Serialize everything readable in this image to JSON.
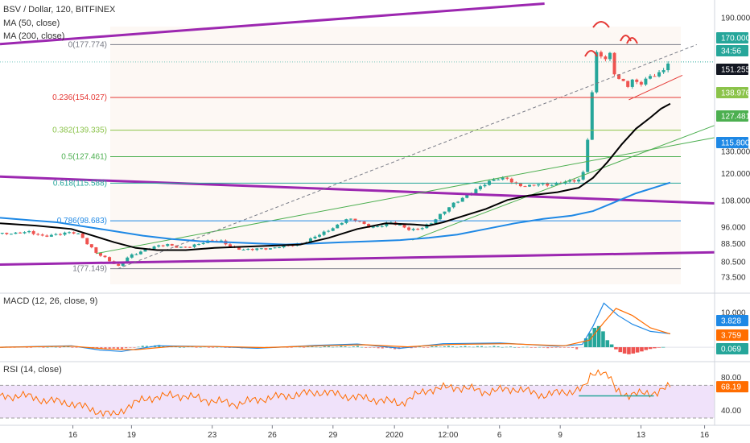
{
  "chart_data": {
    "type": "candlestick",
    "symbol_title": "BSV / Dollar, 120, BITFINEX",
    "indicators": [
      {
        "name": "MA (50, close)",
        "color": "#000000"
      },
      {
        "name": "MA (200, close)",
        "color": "#1e88e5"
      }
    ],
    "price_axis": {
      "range": [
        70.5,
        196
      ],
      "ticks": [
        {
          "label": "190.000",
          "value": 190
        },
        {
          "label": "130.000",
          "value": 130
        },
        {
          "label": "120.000",
          "value": 120
        },
        {
          "label": "108.000",
          "value": 108
        },
        {
          "label": "96.000",
          "value": 96
        },
        {
          "label": "88.500",
          "value": 88.5
        },
        {
          "label": "80.500",
          "value": 80.5
        },
        {
          "label": "73.500",
          "value": 73.5
        }
      ]
    },
    "price_badges": [
      {
        "label": "170.000",
        "value": 170.0,
        "color": "#26a69a"
      },
      {
        "label": "34:56",
        "value": 166.6,
        "color": "#26a69a"
      },
      {
        "label": "151.255",
        "value": 151.255,
        "color": "#131722"
      },
      {
        "label": "138.976",
        "value": 138.976,
        "color": "#8bc34a"
      },
      {
        "label": "127.481",
        "value": 127.481,
        "color": "#4caf50"
      },
      {
        "label": "115.800",
        "value": 115.8,
        "color": "#1e88e5"
      }
    ],
    "fib_levels": [
      {
        "ratio_label": "0",
        "price_label": "177.774",
        "value": 177.774,
        "color": "#787b86"
      },
      {
        "ratio_label": "0.236",
        "price_label": "154.027",
        "value": 154.027,
        "color": "#e53935"
      },
      {
        "ratio_label": "0.382",
        "price_label": "139.335",
        "value": 139.335,
        "color": "#8bc34a"
      },
      {
        "ratio_label": "0.5",
        "price_label": "127.461",
        "value": 127.461,
        "color": "#4caf50"
      },
      {
        "ratio_label": "0.618",
        "price_label": "115.588",
        "value": 115.588,
        "color": "#26a69a"
      },
      {
        "ratio_label": "0.786",
        "price_label": "98.683",
        "value": 98.683,
        "color": "#1e88e5"
      },
      {
        "ratio_label": "1",
        "price_label": "77.149",
        "value": 77.149,
        "color": "#787b86"
      }
    ],
    "x_axis": {
      "ticks": [
        {
          "label": "16",
          "t": 0.102
        },
        {
          "label": "19",
          "t": 0.184
        },
        {
          "label": "23",
          "t": 0.297
        },
        {
          "label": "26",
          "t": 0.381
        },
        {
          "label": "29",
          "t": 0.466
        },
        {
          "label": "2020",
          "t": 0.552
        },
        {
          "label": "12:00",
          "t": 0.627
        },
        {
          "label": "6",
          "t": 0.699
        },
        {
          "label": "9",
          "t": 0.784
        },
        {
          "label": "13",
          "t": 0.897
        },
        {
          "label": "16",
          "t": 0.986
        }
      ]
    },
    "price_path": [
      [
        0.0,
        93.0
      ],
      [
        0.02,
        92.5
      ],
      [
        0.04,
        93.5
      ],
      [
        0.06,
        92.0
      ],
      [
        0.08,
        93.0
      ],
      [
        0.1,
        93.5
      ],
      [
        0.112,
        92.0
      ],
      [
        0.122,
        88.0
      ],
      [
        0.135,
        84.0
      ],
      [
        0.148,
        82.0
      ],
      [
        0.158,
        80.0
      ],
      [
        0.166,
        78.5
      ],
      [
        0.172,
        80.5
      ],
      [
        0.18,
        83.0
      ],
      [
        0.192,
        84.0
      ],
      [
        0.205,
        85.5
      ],
      [
        0.22,
        87.0
      ],
      [
        0.235,
        88.0
      ],
      [
        0.25,
        87.0
      ],
      [
        0.265,
        87.5
      ],
      [
        0.28,
        88.5
      ],
      [
        0.295,
        89.5
      ],
      [
        0.31,
        89.0
      ],
      [
        0.325,
        86.5
      ],
      [
        0.34,
        86.0
      ],
      [
        0.36,
        86.5
      ],
      [
        0.38,
        86.0
      ],
      [
        0.395,
        87.0
      ],
      [
        0.41,
        87.5
      ],
      [
        0.425,
        88.5
      ],
      [
        0.44,
        92.0
      ],
      [
        0.455,
        94.0
      ],
      [
        0.47,
        96.0
      ],
      [
        0.485,
        99.0
      ],
      [
        0.5,
        98.5
      ],
      [
        0.515,
        96.0
      ],
      [
        0.53,
        96.5
      ],
      [
        0.545,
        98.5
      ],
      [
        0.56,
        96.5
      ],
      [
        0.575,
        94.0
      ],
      [
        0.59,
        95.0
      ],
      [
        0.605,
        98.0
      ],
      [
        0.62,
        103.0
      ],
      [
        0.635,
        107.0
      ],
      [
        0.65,
        109.5
      ],
      [
        0.665,
        112.0
      ],
      [
        0.68,
        115.0
      ],
      [
        0.695,
        117.5
      ],
      [
        0.71,
        118.0
      ],
      [
        0.725,
        115.0
      ],
      [
        0.74,
        114.5
      ],
      [
        0.755,
        115.0
      ],
      [
        0.77,
        114.0
      ],
      [
        0.785,
        115.5
      ],
      [
        0.8,
        117.0
      ],
      [
        0.81,
        117.5
      ],
      [
        0.818,
        122.0
      ],
      [
        0.822,
        135.0
      ],
      [
        0.826,
        150.0
      ],
      [
        0.83,
        160.0
      ],
      [
        0.836,
        178.0
      ],
      [
        0.842,
        172.0
      ],
      [
        0.848,
        170.0
      ],
      [
        0.852,
        176.0
      ],
      [
        0.858,
        166.0
      ],
      [
        0.864,
        160.0
      ],
      [
        0.87,
        163.0
      ],
      [
        0.876,
        158.0
      ],
      [
        0.882,
        160.0
      ],
      [
        0.888,
        163.0
      ],
      [
        0.895,
        160.0
      ],
      [
        0.902,
        162.0
      ],
      [
        0.91,
        165.0
      ],
      [
        0.918,
        164.0
      ],
      [
        0.925,
        166.0
      ],
      [
        0.932,
        168.0
      ],
      [
        0.938,
        170.0
      ]
    ],
    "ma50_path": [
      [
        0.0,
        97.5
      ],
      [
        0.05,
        96.5
      ],
      [
        0.1,
        95.0
      ],
      [
        0.13,
        92.0
      ],
      [
        0.16,
        89.0
      ],
      [
        0.19,
        86.5
      ],
      [
        0.22,
        85.5
      ],
      [
        0.26,
        85.5
      ],
      [
        0.3,
        86.5
      ],
      [
        0.34,
        87.0
      ],
      [
        0.38,
        87.5
      ],
      [
        0.42,
        88.0
      ],
      [
        0.46,
        91.0
      ],
      [
        0.5,
        95.0
      ],
      [
        0.54,
        97.5
      ],
      [
        0.58,
        97.0
      ],
      [
        0.6,
        96.5
      ],
      [
        0.62,
        98.0
      ],
      [
        0.65,
        101.0
      ],
      [
        0.68,
        104.0
      ],
      [
        0.71,
        108.0
      ],
      [
        0.74,
        110.0
      ],
      [
        0.78,
        111.5
      ],
      [
        0.81,
        113.5
      ],
      [
        0.83,
        118.0
      ],
      [
        0.85,
        125.0
      ],
      [
        0.87,
        133.0
      ],
      [
        0.89,
        140.0
      ],
      [
        0.91,
        145.0
      ],
      [
        0.925,
        149.0
      ],
      [
        0.938,
        151.255
      ]
    ],
    "ma200_path": [
      [
        0.0,
        100.0
      ],
      [
        0.04,
        99.0
      ],
      [
        0.08,
        98.0
      ],
      [
        0.12,
        96.0
      ],
      [
        0.16,
        94.0
      ],
      [
        0.2,
        92.0
      ],
      [
        0.24,
        90.5
      ],
      [
        0.28,
        89.5
      ],
      [
        0.32,
        89.0
      ],
      [
        0.36,
        88.5
      ],
      [
        0.4,
        88.0
      ],
      [
        0.44,
        88.5
      ],
      [
        0.48,
        89.0
      ],
      [
        0.52,
        89.5
      ],
      [
        0.56,
        90.0
      ],
      [
        0.6,
        91.0
      ],
      [
        0.64,
        92.5
      ],
      [
        0.68,
        95.0
      ],
      [
        0.72,
        97.5
      ],
      [
        0.76,
        99.5
      ],
      [
        0.8,
        101.0
      ],
      [
        0.83,
        103.0
      ],
      [
        0.86,
        107.0
      ],
      [
        0.89,
        111.0
      ],
      [
        0.92,
        114.0
      ],
      [
        0.938,
        115.8
      ]
    ],
    "trendlines": [
      {
        "color": "#9c27b0",
        "width": 3,
        "p1": [
          0.0,
          178.0
        ],
        "p2": [
          0.762,
          196.2
        ]
      },
      {
        "color": "#9c27b0",
        "width": 3,
        "p1": [
          0.0,
          118.5
        ],
        "p2": [
          1.0,
          106.5
        ]
      },
      {
        "color": "#9c27b0",
        "width": 3,
        "p1": [
          0.0,
          79.0
        ],
        "p2": [
          1.0,
          84.5
        ]
      },
      {
        "color": "#4caf50",
        "width": 1,
        "p1": [
          0.135,
          84.0
        ],
        "p2": [
          1.0,
          136.0
        ]
      },
      {
        "color": "#4caf50",
        "width": 1,
        "p1": [
          0.577,
          90.0
        ],
        "p2": [
          1.0,
          141.5
        ]
      },
      {
        "color": "#787b86",
        "width": 1,
        "dash": true,
        "p1": [
          0.165,
          77.149
        ],
        "p2": [
          0.975,
          177.774
        ]
      },
      {
        "color": "#e53935",
        "width": 1,
        "p1": [
          0.88,
          153.0
        ],
        "p2": [
          0.955,
          164.0
        ]
      }
    ],
    "macd": {
      "title": "MACD (12, 26, close, 9)",
      "ticks": [
        {
          "label": "10.000",
          "value": 10.0
        }
      ],
      "range": [
        -2.5,
        13.5
      ],
      "badges": [
        {
          "label": "3.828",
          "value": 3.828,
          "color": "#1e88e5"
        },
        {
          "label": "3.759",
          "value": 3.759,
          "color": "#ff6d00"
        },
        {
          "label": "0.069",
          "value": 0.069,
          "color": "#26a69a"
        }
      ],
      "macd_path": [
        [
          0.0,
          0.0
        ],
        [
          0.1,
          0.4
        ],
        [
          0.14,
          -0.8
        ],
        [
          0.17,
          -1.2
        ],
        [
          0.22,
          0.4
        ],
        [
          0.3,
          0.2
        ],
        [
          0.36,
          -0.3
        ],
        [
          0.44,
          0.5
        ],
        [
          0.5,
          0.9
        ],
        [
          0.56,
          -0.3
        ],
        [
          0.62,
          1.0
        ],
        [
          0.7,
          1.2
        ],
        [
          0.78,
          0.3
        ],
        [
          0.815,
          0.8
        ],
        [
          0.83,
          6.0
        ],
        [
          0.845,
          12.5
        ],
        [
          0.865,
          9.0
        ],
        [
          0.885,
          6.5
        ],
        [
          0.91,
          4.5
        ],
        [
          0.938,
          3.828
        ]
      ],
      "signal_path": [
        [
          0.0,
          0.0
        ],
        [
          0.1,
          0.3
        ],
        [
          0.15,
          -0.5
        ],
        [
          0.19,
          -0.7
        ],
        [
          0.24,
          0.2
        ],
        [
          0.3,
          0.2
        ],
        [
          0.37,
          -0.1
        ],
        [
          0.45,
          0.4
        ],
        [
          0.51,
          0.7
        ],
        [
          0.57,
          0.1
        ],
        [
          0.63,
          0.8
        ],
        [
          0.71,
          1.0
        ],
        [
          0.79,
          0.4
        ],
        [
          0.825,
          2.0
        ],
        [
          0.845,
          7.0
        ],
        [
          0.862,
          11.0
        ],
        [
          0.885,
          9.0
        ],
        [
          0.91,
          5.5
        ],
        [
          0.938,
          3.759
        ]
      ],
      "hist": [
        [
          0.82,
          2.5
        ],
        [
          0.826,
          4.0
        ],
        [
          0.832,
          5.5
        ],
        [
          0.838,
          6.0
        ],
        [
          0.844,
          4.5
        ],
        [
          0.85,
          2.0
        ],
        [
          0.856,
          0.8
        ],
        [
          0.862,
          -0.6
        ],
        [
          0.868,
          -1.4
        ],
        [
          0.874,
          -1.8
        ],
        [
          0.88,
          -2.0
        ],
        [
          0.886,
          -1.8
        ],
        [
          0.892,
          -1.5
        ],
        [
          0.898,
          -1.2
        ],
        [
          0.904,
          -0.8
        ],
        [
          0.91,
          -0.5
        ],
        [
          0.916,
          -0.3
        ],
        [
          0.922,
          -0.1
        ],
        [
          0.928,
          0.05
        ]
      ]
    },
    "rsi": {
      "title": "RSI (14, close)",
      "ticks": [
        {
          "label": "80.00",
          "value": 80
        },
        {
          "label": "40.00",
          "value": 40
        }
      ],
      "range": [
        27,
        93
      ],
      "band": [
        30,
        70
      ],
      "badges": [
        {
          "label": "68.19",
          "value": 68.19,
          "color": "#ff6d00"
        }
      ],
      "rsi_path": [
        [
          0.0,
          55
        ],
        [
          0.03,
          58
        ],
        [
          0.06,
          52
        ],
        [
          0.1,
          48
        ],
        [
          0.13,
          40
        ],
        [
          0.16,
          33
        ],
        [
          0.18,
          45
        ],
        [
          0.21,
          55
        ],
        [
          0.25,
          58
        ],
        [
          0.29,
          52
        ],
        [
          0.33,
          47
        ],
        [
          0.37,
          54
        ],
        [
          0.41,
          58
        ],
        [
          0.45,
          62
        ],
        [
          0.49,
          56
        ],
        [
          0.53,
          52
        ],
        [
          0.56,
          48
        ],
        [
          0.6,
          65
        ],
        [
          0.64,
          68
        ],
        [
          0.68,
          62
        ],
        [
          0.72,
          66
        ],
        [
          0.76,
          58
        ],
        [
          0.8,
          63
        ],
        [
          0.818,
          66
        ],
        [
          0.828,
          85
        ],
        [
          0.84,
          88
        ],
        [
          0.852,
          80
        ],
        [
          0.862,
          64
        ],
        [
          0.88,
          58
        ],
        [
          0.9,
          60
        ],
        [
          0.92,
          62
        ],
        [
          0.938,
          68.19
        ]
      ],
      "divergence_line": [
        [
          0.81,
          57
        ],
        [
          0.915,
          57
        ]
      ]
    }
  }
}
